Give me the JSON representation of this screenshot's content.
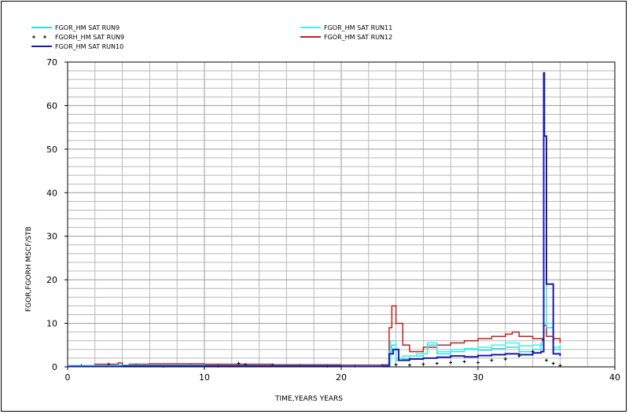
{
  "chart_data": {
    "type": "line",
    "title": "",
    "xlabel": "TIME,YEARS   YEARS",
    "ylabel": "FGOR,FGORH   MSCF/STB",
    "xlim": [
      0,
      40
    ],
    "ylim": [
      0,
      70
    ],
    "xticks": [
      0,
      10,
      20,
      30,
      40
    ],
    "yticks": [
      0,
      10,
      20,
      30,
      40,
      50,
      60,
      70
    ],
    "grid": true,
    "legend_position": "top",
    "series": [
      {
        "name": "FGOR_HM SAT RUN9",
        "color": "#33dddd",
        "style": "line",
        "x": [
          0,
          2,
          3.5,
          4,
          6,
          10,
          15,
          20,
          23,
          23.5,
          23.7,
          24,
          24.5,
          25,
          26,
          26.3,
          27,
          28,
          29,
          30,
          31,
          32,
          33,
          34,
          34.6,
          34.8,
          35,
          35.5,
          36
        ],
        "y": [
          0.2,
          0.3,
          0.4,
          0.3,
          0.3,
          0.3,
          0.2,
          0.2,
          0.3,
          3.5,
          5,
          1.5,
          1.8,
          2.5,
          3,
          5,
          3,
          3.5,
          4,
          3.8,
          4.2,
          4.5,
          3.5,
          4,
          5,
          53,
          9,
          4,
          5
        ]
      },
      {
        "name": "FGORH_HM SAT RUN9",
        "color": "#000000",
        "style": "markers",
        "x": [
          1,
          3,
          5,
          7,
          9,
          11,
          12.5,
          13,
          15,
          17,
          19,
          21,
          23,
          24,
          25,
          26,
          27,
          28,
          29,
          30,
          31,
          32,
          33,
          34,
          35,
          35.5,
          36
        ],
        "y": [
          0.3,
          0.6,
          0.4,
          0.2,
          0.3,
          0.2,
          0.8,
          0.5,
          0.4,
          0.3,
          0.2,
          0.2,
          0.3,
          0.5,
          0.4,
          0.6,
          0.8,
          1,
          1.2,
          1,
          1.5,
          1.8,
          2.5,
          3.5,
          1.5,
          0.8,
          0.3
        ]
      },
      {
        "name": "FGOR_HM SAT RUN10",
        "color": "#1a1aaa",
        "style": "line",
        "x": [
          0,
          4,
          10,
          20,
          23,
          23.5,
          23.8,
          24.2,
          25,
          26,
          27,
          28,
          29,
          30,
          31,
          32,
          33,
          34,
          34.6,
          34.8,
          34.85,
          35,
          35.5,
          36
        ],
        "y": [
          0.1,
          0.2,
          0.2,
          0.1,
          0.2,
          3,
          4,
          1.5,
          1.8,
          2,
          2.2,
          2.5,
          2.3,
          2.6,
          2.8,
          3,
          2.8,
          3.2,
          3.5,
          67.5,
          53,
          19,
          3,
          2.5
        ]
      },
      {
        "name": "FGOR_HM SAT RUN11",
        "color": "#44eeee",
        "style": "line",
        "x": [
          0,
          4,
          10,
          20,
          23,
          23.6,
          24,
          24.5,
          25.5,
          26.3,
          27,
          28,
          29,
          30,
          31,
          32,
          33,
          34,
          34.6,
          34.8,
          35,
          35.5,
          36
        ],
        "y": [
          0.3,
          0.4,
          0.3,
          0.2,
          0.3,
          6,
          2,
          2.5,
          3,
          5.5,
          3.5,
          4,
          4.2,
          4.5,
          5,
          5.5,
          4.8,
          5,
          5.5,
          53,
          10,
          4.5,
          5
        ]
      },
      {
        "name": "FGOR_HM SAT RUN12",
        "color": "#bb2222",
        "style": "line",
        "x": [
          0,
          2,
          3.7,
          4,
          4.5,
          6,
          10,
          15,
          20,
          23,
          23.5,
          23.7,
          24,
          24.5,
          25,
          26,
          27,
          28,
          29,
          30,
          31,
          32,
          32.5,
          33,
          34,
          34.7,
          34.8,
          35,
          35.5,
          36
        ],
        "y": [
          0.3,
          0.6,
          0.9,
          0.2,
          0.6,
          0.7,
          0.6,
          0.5,
          0.4,
          0.5,
          9,
          14,
          10,
          5,
          3.5,
          4.5,
          5,
          5.5,
          6,
          6.5,
          7,
          7.5,
          8,
          7,
          6.5,
          6,
          9.5,
          7,
          6.5,
          5.5
        ]
      }
    ]
  }
}
